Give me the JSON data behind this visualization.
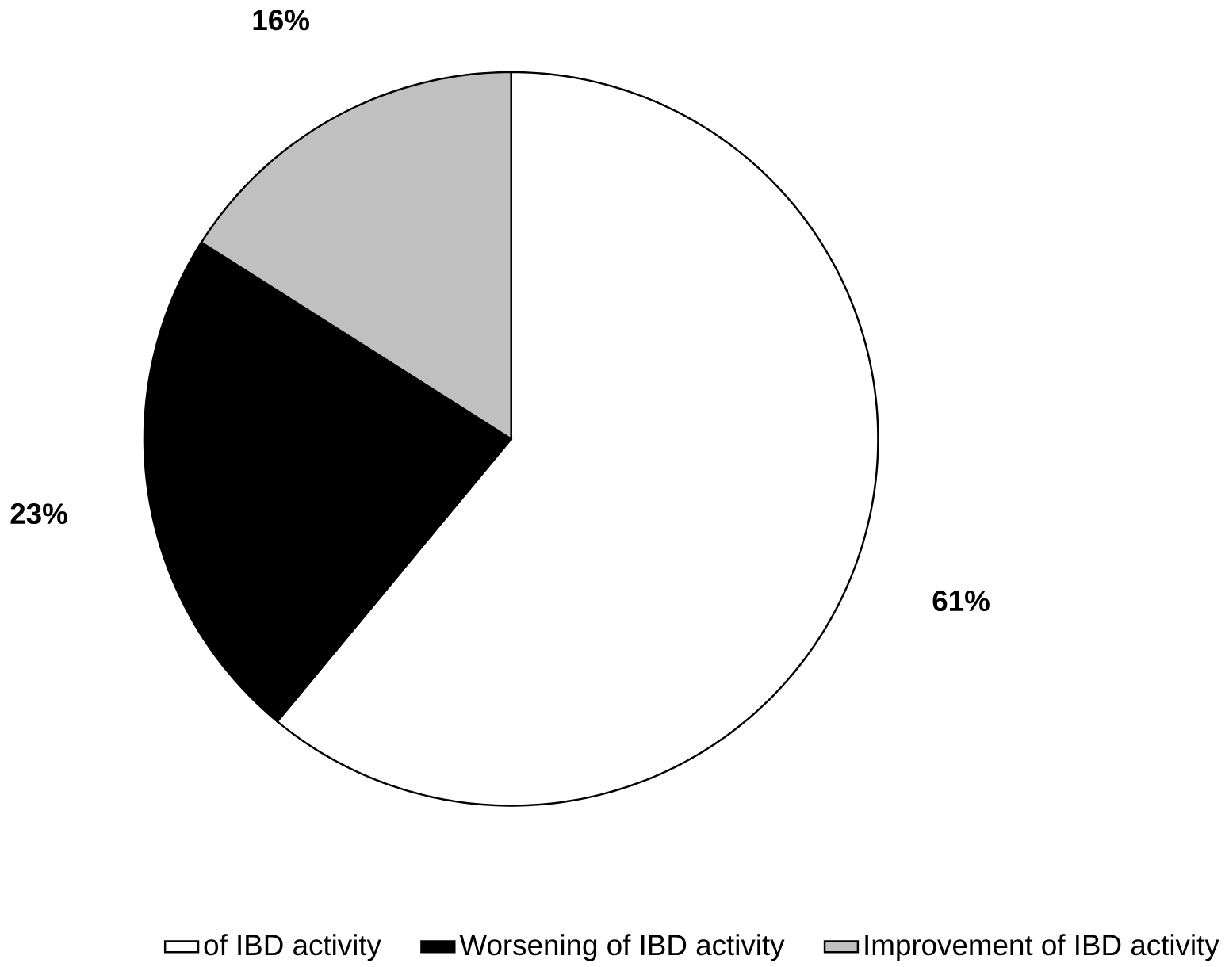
{
  "chart_data": {
    "type": "pie",
    "categories": [
      "of IBD activity",
      "Worsening of IBD activity",
      "Improvement of IBD activity"
    ],
    "values": [
      61,
      23,
      16
    ],
    "value_labels": [
      "61%",
      "23%",
      "16%"
    ],
    "colors": [
      "#ffffff",
      "#000000",
      "#c0c0c0"
    ],
    "legend": "bottom"
  }
}
